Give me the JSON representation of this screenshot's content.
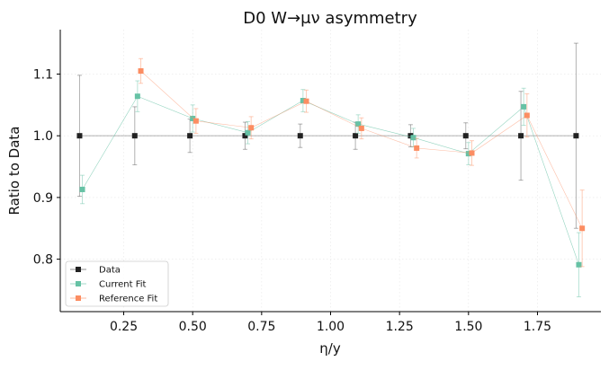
{
  "chart_data": {
    "type": "line",
    "title": "D0 W→μν asymmetry",
    "xlabel": "η/y",
    "ylabel": "Ratio to Data",
    "xlim": [
      0.02,
      1.98
    ],
    "ylim": [
      0.715,
      1.172
    ],
    "xticks": [
      "0.25",
      "0.50",
      "0.75",
      "1.00",
      "1.25",
      "1.50",
      "1.75"
    ],
    "xtick_values": [
      0.25,
      0.5,
      0.75,
      1.0,
      1.25,
      1.5,
      1.75
    ],
    "yticks": [
      "0.8",
      "0.9",
      "1.0",
      "1.1"
    ],
    "ytick_values": [
      0.8,
      0.9,
      1.0,
      1.1
    ],
    "grid": true,
    "legend_position": "lower-left",
    "series": [
      {
        "name": "Data",
        "color": "#222222",
        "marker": "square",
        "x": [
          0.1,
          0.3,
          0.5,
          0.7,
          0.9,
          1.1,
          1.3,
          1.5,
          1.7,
          1.9
        ],
        "y": [
          1.0,
          1.0,
          1.0,
          1.0,
          1.0,
          1.0,
          1.0,
          1.0,
          1.0,
          1.0
        ],
        "yerr": [
          0.098,
          0.047,
          0.027,
          0.022,
          0.019,
          0.022,
          0.018,
          0.021,
          0.072,
          0.15
        ]
      },
      {
        "name": "Current Fit",
        "color": "#66c2a5",
        "marker": "square",
        "x": [
          0.1,
          0.3,
          0.5,
          0.7,
          0.9,
          1.1,
          1.3,
          1.5,
          1.7,
          1.9
        ],
        "y": [
          0.913,
          1.064,
          1.028,
          1.005,
          1.057,
          1.019,
          0.997,
          0.971,
          1.047,
          0.791
        ],
        "yerr": [
          0.023,
          0.025,
          0.022,
          0.018,
          0.018,
          0.015,
          0.015,
          0.018,
          0.03,
          0.052
        ]
      },
      {
        "name": "Reference Fit",
        "color": "#fc8d62",
        "marker": "square",
        "x": [
          0.1,
          0.3,
          0.5,
          0.7,
          0.9,
          1.1,
          1.3,
          1.5,
          1.7,
          1.9
        ],
        "y": [
          null,
          1.105,
          1.024,
          1.013,
          1.056,
          1.012,
          0.98,
          0.972,
          1.033,
          0.85
        ],
        "yerr": [
          null,
          0.02,
          0.02,
          0.018,
          0.018,
          0.017,
          0.016,
          0.02,
          0.035,
          0.062
        ]
      }
    ]
  }
}
